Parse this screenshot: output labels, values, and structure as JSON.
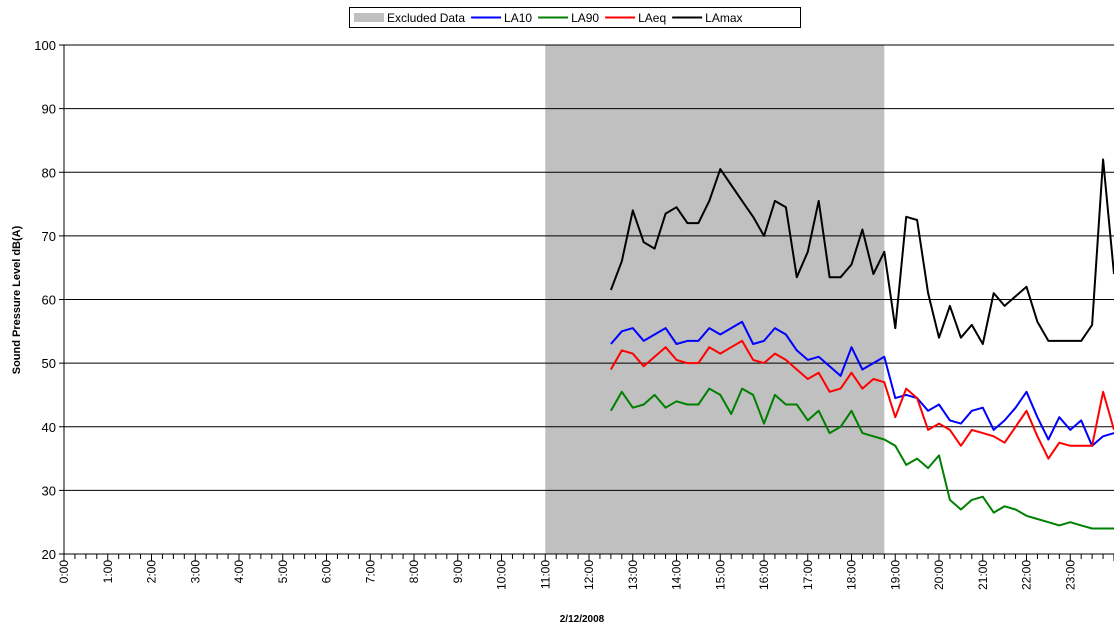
{
  "chart_data": {
    "type": "line",
    "title": "",
    "xlabel": "2/12/2008",
    "ylabel": "Sound Pressure Level dB(A)",
    "ylim": [
      20,
      100
    ],
    "yticks": [
      20,
      30,
      40,
      50,
      60,
      70,
      80,
      90,
      100
    ],
    "xlim_hours": [
      0,
      24
    ],
    "xtick_labels": [
      "0:00",
      "1:00",
      "2:00",
      "3:00",
      "4:00",
      "5:00",
      "6:00",
      "7:00",
      "8:00",
      "9:00",
      "10:00",
      "11:00",
      "12:00",
      "13:00",
      "14:00",
      "15:00",
      "16:00",
      "17:00",
      "18:00",
      "19:00",
      "20:00",
      "21:00",
      "22:00",
      "23:00"
    ],
    "grid": "horizontal",
    "legend_position": "top-center",
    "legend": [
      {
        "label": "Excluded Data",
        "kind": "area",
        "color": "#c0c0c0"
      },
      {
        "label": "LA10",
        "kind": "line",
        "color": "#0000ff"
      },
      {
        "label": "LA90",
        "kind": "line",
        "color": "#008000"
      },
      {
        "label": "LAeq",
        "kind": "line",
        "color": "#ff0000"
      },
      {
        "label": "LAmax",
        "kind": "line",
        "color": "#000000"
      }
    ],
    "excluded_range": {
      "start": "11:00",
      "end": "18:45"
    },
    "x": [
      "12:30",
      "12:45",
      "13:00",
      "13:15",
      "13:30",
      "13:45",
      "14:00",
      "14:15",
      "14:30",
      "14:45",
      "15:00",
      "15:15",
      "15:30",
      "15:45",
      "16:00",
      "16:15",
      "16:30",
      "16:45",
      "17:00",
      "17:15",
      "17:30",
      "17:45",
      "18:00",
      "18:15",
      "18:30",
      "18:45",
      "19:00",
      "19:15",
      "19:30",
      "19:45",
      "20:00",
      "20:15",
      "20:30",
      "20:45",
      "21:00",
      "21:15",
      "21:30",
      "21:45",
      "22:00",
      "22:15",
      "22:30",
      "22:45",
      "23:00",
      "23:15",
      "23:30",
      "23:45",
      "24:00"
    ],
    "series": [
      {
        "name": "LA10",
        "color": "#0000ff",
        "values": [
          53,
          55,
          55.5,
          53.5,
          54.5,
          55.5,
          53,
          53.5,
          53.5,
          55.5,
          54.5,
          55.5,
          56.5,
          53,
          53.5,
          55.5,
          54.5,
          52,
          50.5,
          51,
          49.5,
          48,
          52.5,
          49,
          50,
          51,
          44.5,
          45,
          44.5,
          42.5,
          43.5,
          41,
          40.5,
          42.5,
          43,
          39.5,
          41,
          43,
          45.5,
          41.5,
          38,
          41.5,
          39.5,
          41,
          37,
          38.5,
          39
        ]
      },
      {
        "name": "LA90",
        "color": "#008000",
        "values": [
          42.5,
          45.5,
          43,
          43.5,
          45,
          43,
          44,
          43.5,
          43.5,
          46,
          45,
          42,
          46,
          45,
          40.5,
          45,
          43.5,
          43.5,
          41,
          42.5,
          39,
          40,
          42.5,
          39,
          38.5,
          38,
          37,
          34,
          35,
          33.5,
          35.5,
          28.5,
          27,
          28.5,
          29,
          26.5,
          27.5,
          27,
          26,
          25.5,
          25,
          24.5,
          25,
          24.5,
          24,
          24,
          24
        ]
      },
      {
        "name": "LAeq",
        "color": "#ff0000",
        "values": [
          49,
          52,
          51.5,
          49.5,
          51,
          52.5,
          50.5,
          50,
          50,
          52.5,
          51.5,
          52.5,
          53.5,
          50.5,
          50,
          51.5,
          50.5,
          49,
          47.5,
          48.5,
          45.5,
          46,
          48.5,
          46,
          47.5,
          47,
          41.5,
          46,
          44.5,
          39.5,
          40.5,
          39.5,
          37,
          39.5,
          39,
          38.5,
          37.5,
          40,
          42.5,
          38.5,
          35,
          37.5,
          37,
          37,
          37,
          45.5,
          39.5
        ]
      },
      {
        "name": "LAmax",
        "color": "#000000",
        "values": [
          61.5,
          66,
          74,
          69,
          68,
          73.5,
          74.5,
          72,
          72,
          75.5,
          80.5,
          78,
          75.5,
          73,
          70,
          75.5,
          74.5,
          63.5,
          67.5,
          75.5,
          63.5,
          63.5,
          65.5,
          71,
          64,
          67.5,
          55.5,
          73,
          72.5,
          61,
          54,
          59,
          54,
          56,
          53,
          61,
          59,
          60.5,
          62,
          56.5,
          53.5,
          53.5,
          53.5,
          53.5,
          56,
          82,
          64
        ]
      }
    ]
  }
}
